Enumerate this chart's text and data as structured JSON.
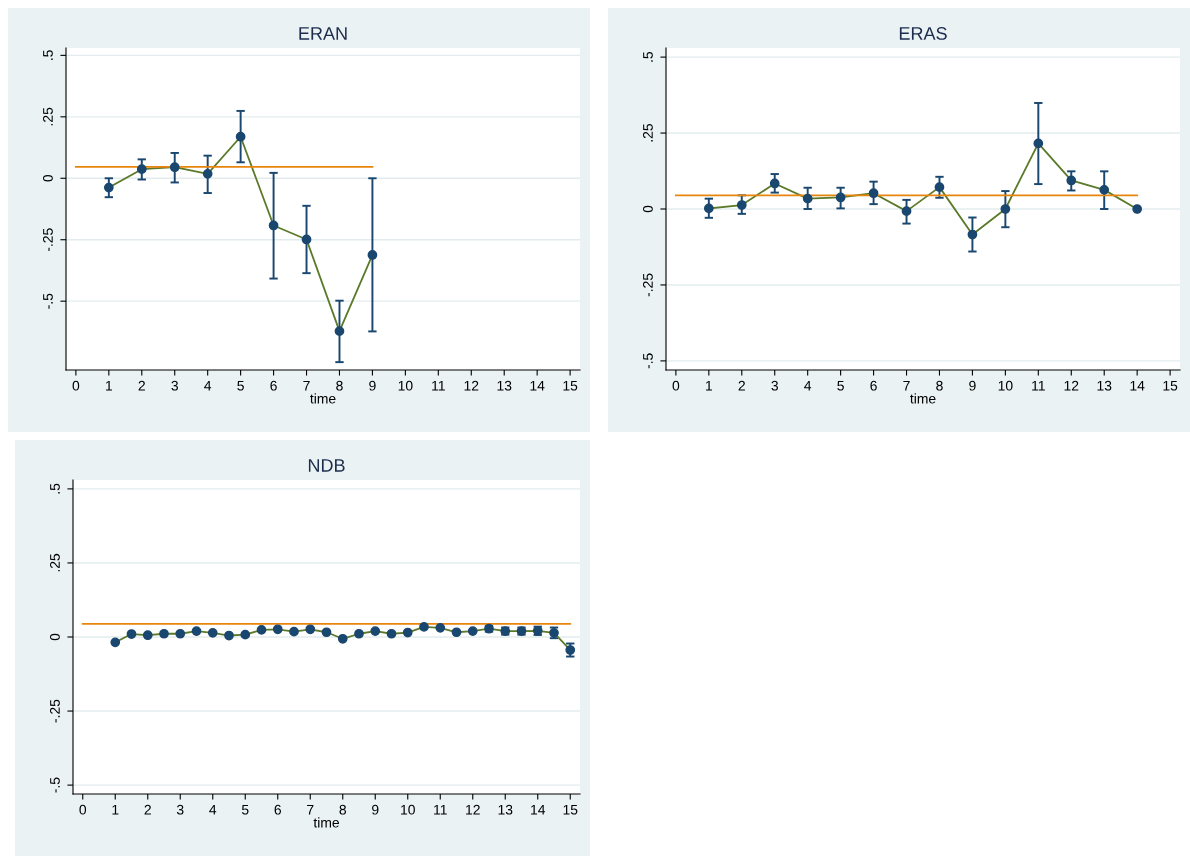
{
  "chart_data": [
    {
      "type": "line",
      "title": "ERAN",
      "xlabel": "time",
      "xlim": [
        -0.3,
        15.3
      ],
      "xticks": [
        0,
        1,
        2,
        3,
        4,
        5,
        6,
        7,
        8,
        9,
        10,
        11,
        12,
        13,
        14,
        15
      ],
      "ylim": [
        -0.78,
        0.53
      ],
      "yticks": [
        {
          "value": -0.5,
          "label": "-.5"
        },
        {
          "value": -0.25,
          "label": "-.25"
        },
        0,
        {
          "value": 0.25,
          "label": ".25"
        },
        {
          "value": 0.5,
          "label": ".5"
        }
      ],
      "grid": "y",
      "marker": "circle",
      "legend": false,
      "series": [
        {
          "color": "#5a7a2a",
          "x": [
            1,
            2,
            3,
            4,
            5,
            6,
            7,
            8,
            9
          ],
          "values": [
            -0.038,
            0.037,
            0.045,
            0.018,
            0.169,
            -0.192,
            -0.249,
            -0.622,
            -0.312
          ],
          "errors": [
            [
              -0.077,
              0
            ],
            [
              -0.005,
              0.077
            ],
            [
              -0.017,
              0.103
            ],
            [
              -0.06,
              0.092
            ],
            [
              0.065,
              0.274
            ],
            [
              -0.408,
              0.022
            ],
            [
              -0.386,
              -0.112
            ],
            [
              -0.748,
              -0.498
            ],
            [
              -0.623,
              0
            ]
          ]
        },
        {
          "type": "line",
          "marker": "none",
          "color": "#e8850c",
          "x": [
            0,
            9
          ],
          "values": [
            0.046,
            0.046
          ]
        }
      ]
    },
    {
      "type": "line",
      "title": "ERAS",
      "xlabel": "time",
      "xlim": [
        -0.3,
        15.3
      ],
      "xticks": [
        0,
        1,
        2,
        3,
        4,
        5,
        6,
        7,
        8,
        9,
        10,
        11,
        12,
        13,
        14,
        15
      ],
      "ylim": [
        -0.53,
        0.53
      ],
      "yticks": [
        {
          "value": -0.5,
          "label": "-.5"
        },
        {
          "value": -0.25,
          "label": "-.25"
        },
        0,
        {
          "value": 0.25,
          "label": ".25"
        },
        {
          "value": 0.5,
          "label": ".5"
        }
      ],
      "grid": "y",
      "marker": "circle",
      "legend": false,
      "series": [
        {
          "color": "#5a7a2a",
          "x": [
            1,
            2,
            3,
            4,
            5,
            6,
            7,
            8,
            9,
            10,
            11,
            12,
            13,
            14
          ],
          "values": [
            0.002,
            0.013,
            0.084,
            0.034,
            0.038,
            0.052,
            -0.007,
            0.072,
            -0.084,
            0,
            0.216,
            0.094,
            0.063,
            0
          ],
          "errors": [
            [
              -0.029,
              0.034
            ],
            [
              -0.016,
              0.045
            ],
            [
              0.054,
              0.115
            ],
            [
              0,
              0.07
            ],
            [
              0.002,
              0.07
            ],
            [
              0.016,
              0.09
            ],
            [
              -0.048,
              0.03
            ],
            [
              0.037,
              0.106
            ],
            [
              -0.14,
              -0.028
            ],
            [
              -0.06,
              0.059
            ],
            [
              0.082,
              0.349
            ],
            [
              0.061,
              0.124
            ],
            [
              0,
              0.124
            ],
            null
          ]
        },
        {
          "type": "line",
          "marker": "none",
          "color": "#e8850c",
          "x": [
            0,
            14
          ],
          "values": [
            0.045,
            0.045
          ]
        }
      ]
    },
    {
      "type": "line",
      "title": "NDB",
      "xlabel": "time",
      "xlim": [
        -0.3,
        15.3
      ],
      "xticks": [
        0,
        1,
        2,
        3,
        4,
        5,
        6,
        7,
        8,
        9,
        10,
        11,
        12,
        13,
        14,
        15
      ],
      "ylim": [
        -0.53,
        0.53
      ],
      "yticks": [
        {
          "value": -0.5,
          "label": "-.5"
        },
        {
          "value": -0.25,
          "label": "-.25"
        },
        0,
        {
          "value": 0.25,
          "label": ".25"
        },
        {
          "value": 0.5,
          "label": ".5"
        }
      ],
      "grid": "y",
      "marker": "circle",
      "legend": false,
      "series": [
        {
          "color": "#5a7a2a",
          "x": [
            1,
            1.5,
            2,
            2.5,
            3,
            3.5,
            4,
            4.5,
            5,
            5.5,
            6,
            6.5,
            7,
            7.5,
            8,
            8.5,
            9,
            9.5,
            10,
            10.5,
            11,
            11.5,
            12,
            12.5,
            13,
            13.5,
            14,
            14.5,
            15
          ],
          "values": [
            -0.018,
            0.01,
            0.006,
            0.011,
            0.011,
            0.02,
            0.014,
            0.005,
            0.008,
            0.024,
            0.026,
            0.018,
            0.026,
            0.016,
            -0.006,
            0.011,
            0.02,
            0.011,
            0.015,
            0.034,
            0.031,
            0.016,
            0.02,
            0.028,
            0.02,
            0.02,
            0.021,
            0.014,
            -0.044
          ],
          "errors": [
            null,
            null,
            null,
            null,
            null,
            null,
            null,
            null,
            null,
            null,
            null,
            null,
            null,
            null,
            null,
            null,
            null,
            null,
            null,
            null,
            null,
            null,
            null,
            [
              0.018,
              0.038
            ],
            [
              0.008,
              0.032
            ],
            [
              0.008,
              0.032
            ],
            [
              0.007,
              0.035
            ],
            [
              -0.004,
              0.032
            ],
            [
              -0.066,
              -0.022
            ]
          ]
        },
        {
          "type": "line",
          "marker": "none",
          "color": "#e8850c",
          "x": [
            0,
            15
          ],
          "values": [
            0.044,
            0.044
          ]
        }
      ]
    }
  ]
}
